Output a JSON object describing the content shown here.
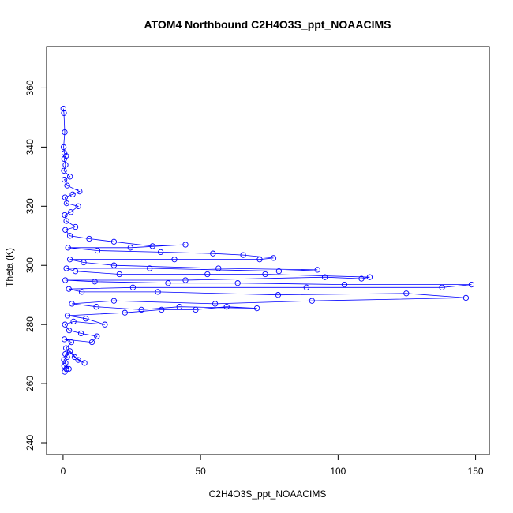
{
  "chart_data": {
    "type": "scatter",
    "title": "ATOM4 Northbound C2H4O3S_ppt_NOAACIMS",
    "xlabel": "C2H4O3S_ppt_NOAACIMS",
    "ylabel": "Theta (K)",
    "xlim": [
      -6,
      155
    ],
    "ylim": [
      236,
      374
    ],
    "xticks": [
      0,
      50,
      100,
      150
    ],
    "yticks": [
      240,
      260,
      280,
      300,
      320,
      340,
      360
    ],
    "grid": false,
    "series_color": "#0000ff",
    "marker": "open-circle",
    "connected": true,
    "series": [
      {
        "values": [
          [
            0.6,
            264
          ],
          [
            1.2,
            265
          ],
          [
            0.4,
            266
          ],
          [
            2.1,
            265
          ],
          [
            0.9,
            267
          ],
          [
            0.3,
            268
          ],
          [
            1.5,
            269
          ],
          [
            0.8,
            270
          ],
          [
            2.5,
            271
          ],
          [
            5.5,
            268
          ],
          [
            7.8,
            267
          ],
          [
            4.2,
            269
          ],
          [
            1.1,
            272
          ],
          [
            3.0,
            274
          ],
          [
            0.5,
            275
          ],
          [
            10.5,
            274
          ],
          [
            12.3,
            276
          ],
          [
            6.5,
            277
          ],
          [
            2.2,
            278
          ],
          [
            0.7,
            280
          ],
          [
            3.8,
            281
          ],
          [
            15.2,
            280
          ],
          [
            8.3,
            282
          ],
          [
            1.6,
            283
          ],
          [
            22.5,
            284
          ],
          [
            35.8,
            285
          ],
          [
            48.2,
            285
          ],
          [
            59.5,
            286
          ],
          [
            70.5,
            285.5
          ],
          [
            42.3,
            286
          ],
          [
            28.5,
            285
          ],
          [
            12.1,
            286
          ],
          [
            3.2,
            287
          ],
          [
            18.5,
            288
          ],
          [
            55.3,
            287
          ],
          [
            90.5,
            288
          ],
          [
            146.5,
            289
          ],
          [
            124.8,
            290.5
          ],
          [
            78.2,
            290
          ],
          [
            34.5,
            291
          ],
          [
            6.8,
            291
          ],
          [
            2.1,
            292
          ],
          [
            25.4,
            292.5
          ],
          [
            88.5,
            292.5
          ],
          [
            137.8,
            292.5
          ],
          [
            148.5,
            293.5
          ],
          [
            102.3,
            293.5
          ],
          [
            63.5,
            294
          ],
          [
            38.2,
            294
          ],
          [
            11.5,
            294.5
          ],
          [
            0.8,
            295
          ],
          [
            44.5,
            295
          ],
          [
            95.2,
            296
          ],
          [
            108.5,
            295.5
          ],
          [
            111.5,
            296
          ],
          [
            73.5,
            297
          ],
          [
            52.5,
            297
          ],
          [
            20.5,
            297
          ],
          [
            4.5,
            298
          ],
          [
            1.2,
            299
          ],
          [
            31.5,
            299
          ],
          [
            78.5,
            298
          ],
          [
            92.5,
            298.5
          ],
          [
            56.5,
            299
          ],
          [
            18.5,
            300
          ],
          [
            7.5,
            301
          ],
          [
            2.5,
            302
          ],
          [
            40.5,
            302
          ],
          [
            71.5,
            302
          ],
          [
            76.5,
            302.5
          ],
          [
            65.5,
            303.5
          ],
          [
            54.5,
            304
          ],
          [
            35.5,
            304.5
          ],
          [
            12.5,
            305
          ],
          [
            1.8,
            306
          ],
          [
            24.5,
            306
          ],
          [
            44.5,
            307
          ],
          [
            32.5,
            306.5
          ],
          [
            18.5,
            308
          ],
          [
            9.5,
            309
          ],
          [
            2.5,
            310
          ],
          [
            0.8,
            312
          ],
          [
            4.5,
            313
          ],
          [
            1.2,
            315
          ],
          [
            0.6,
            317
          ],
          [
            2.8,
            318
          ],
          [
            5.5,
            320
          ],
          [
            1.3,
            321
          ],
          [
            0.7,
            323
          ],
          [
            3.5,
            324
          ],
          [
            6.0,
            325
          ],
          [
            1.5,
            327
          ],
          [
            0.5,
            329
          ],
          [
            2.5,
            330
          ],
          [
            0.3,
            332
          ],
          [
            0.9,
            334
          ],
          [
            0.4,
            336
          ],
          [
            1.1,
            337
          ],
          [
            0.5,
            338
          ],
          [
            0.2,
            340
          ],
          [
            0.6,
            345
          ],
          [
            0.3,
            351.5
          ],
          [
            0.1,
            353
          ]
        ]
      }
    ]
  }
}
